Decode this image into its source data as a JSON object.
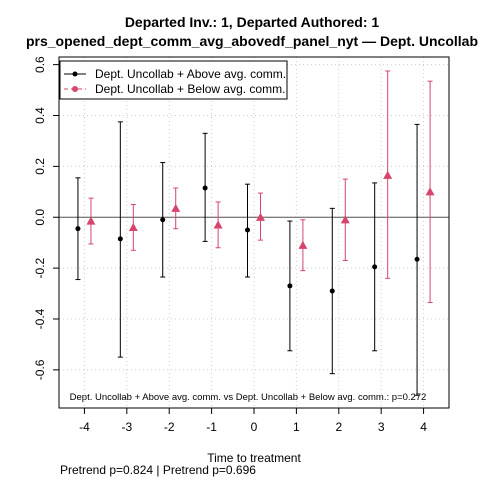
{
  "chart_data": {
    "type": "scatter",
    "title_lines": [
      "Departed Inv.: 1, Departed Authored: 1",
      "prs_opened_dept_comm_avg_abovedf_panel_nyt — Dept. Uncollab"
    ],
    "xlabel": "Time to treatment",
    "ylabel": "",
    "x_ticks": [
      -4,
      -3,
      -2,
      -1,
      0,
      1,
      2,
      3,
      4
    ],
    "y_ticks": [
      -0.6,
      -0.4,
      -0.2,
      0.0,
      0.2,
      0.4,
      0.6
    ],
    "y_tick_labels": [
      "-0.6",
      "-0.4",
      "-0.2",
      "0.0",
      "0.2",
      "0.4",
      "0.6"
    ],
    "xlim": [
      -4.6,
      4.6
    ],
    "ylim": [
      -0.75,
      0.63
    ],
    "grid": true,
    "legend_position": "top-left",
    "reference_line_y": 0,
    "series": [
      {
        "name": "Dept. Uncollab + Above avg. comm.",
        "color": "#000000",
        "marker": "circle",
        "x": [
          -4,
          -3,
          -2,
          -1,
          0,
          1,
          2,
          3,
          4
        ],
        "y": [
          -0.045,
          -0.085,
          -0.01,
          0.115,
          -0.05,
          -0.27,
          -0.29,
          -0.195,
          -0.165
        ],
        "ci_low": [
          -0.245,
          -0.55,
          -0.235,
          -0.095,
          -0.235,
          -0.525,
          -0.615,
          -0.525,
          -0.7
        ],
        "ci_high": [
          0.155,
          0.375,
          0.215,
          0.33,
          0.13,
          -0.015,
          0.035,
          0.135,
          0.365
        ]
      },
      {
        "name": "Dept. Uncollab + Below avg. comm.",
        "color": "#d6456b",
        "marker": "triangle",
        "x": [
          -4,
          -3,
          -2,
          -1,
          0,
          1,
          2,
          3,
          4
        ],
        "y": [
          -0.015,
          -0.04,
          0.035,
          -0.03,
          0.0,
          -0.11,
          -0.01,
          0.165,
          0.1
        ],
        "ci_low": [
          -0.105,
          -0.13,
          -0.045,
          -0.12,
          -0.09,
          -0.21,
          -0.17,
          -0.24,
          -0.335
        ],
        "ci_high": [
          0.075,
          0.05,
          0.115,
          0.06,
          0.095,
          -0.01,
          0.15,
          0.575,
          0.535
        ]
      }
    ],
    "annotation": "Dept. Uncollab + Above avg. comm. vs Dept. Uncollab + Below avg. comm.: p=0.272",
    "footer": "Pretrend p=0.824 | Pretrend p=0.696"
  }
}
